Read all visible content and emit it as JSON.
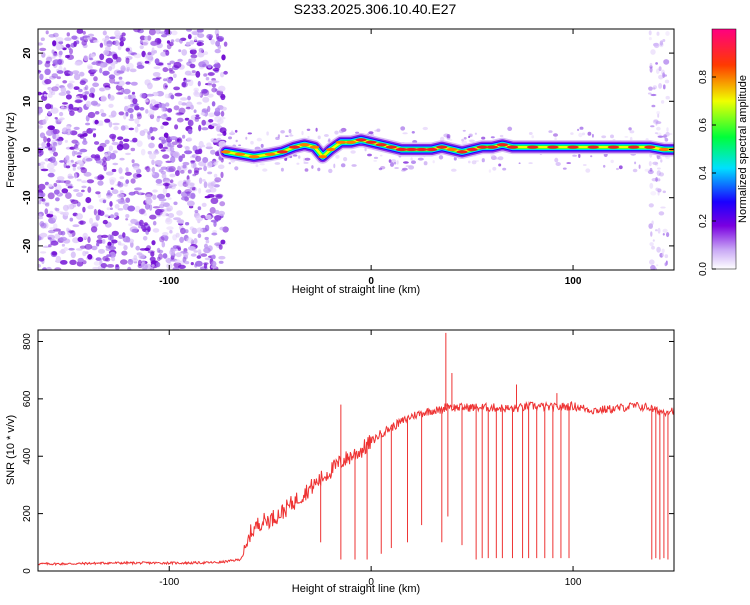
{
  "title": "S233.2025.306.10.40.E27",
  "colors": {
    "snr_line": "#ee3333",
    "axes": "#000000",
    "track_core": "#ee2222",
    "spectrum_noise": "#7a1fd8"
  },
  "chart_data": [
    {
      "type": "heatmap",
      "xlabel": "Height of straight line (km)",
      "ylabel": "Frequency (Hz)",
      "xlim": [
        -165,
        150
      ],
      "ylim": [
        -25,
        25
      ],
      "x_ticks": [
        -100,
        0,
        100
      ],
      "y_ticks": [
        20,
        10,
        0,
        -10,
        -20
      ],
      "colorbar": {
        "label": "Normalized spectral amplitude",
        "range": [
          0,
          1
        ],
        "ticks": [
          "0.0",
          "0.2",
          "0.4",
          "0.6",
          "0.8"
        ],
        "colormap": [
          "#ffffff",
          "#7a00e0",
          "#1a00ff",
          "#00e0ff",
          "#00ff3a",
          "#f0ff00",
          "#ff3a00",
          "#ff0080"
        ]
      },
      "noise_region": {
        "x_from": -165,
        "x_to": -72,
        "freq_from": -25,
        "freq_to": 25
      },
      "edge_noise_region": {
        "x_from": 138,
        "x_to": 147
      },
      "signal_track": {
        "x": [
          -72,
          -65,
          -58,
          -50,
          -44,
          -38,
          -33,
          -28,
          -24,
          -20,
          -15,
          -10,
          -5,
          0,
          5,
          10,
          15,
          20,
          25,
          30,
          35,
          40,
          45,
          50,
          55,
          60,
          65,
          70,
          80,
          90,
          100,
          110,
          120,
          130,
          138,
          145,
          150
        ],
        "freq": [
          -0.5,
          -1.0,
          -1.5,
          -1.0,
          -0.5,
          0.5,
          1.0,
          0.5,
          -1.5,
          0.0,
          1.5,
          1.5,
          2.0,
          1.5,
          1.0,
          0.5,
          0.0,
          0.0,
          0.0,
          0.0,
          0.5,
          0.0,
          -0.5,
          0.0,
          0.5,
          0.5,
          1.0,
          0.5,
          0.5,
          0.5,
          0.5,
          0.5,
          0.5,
          0.5,
          0.5,
          0.0,
          0.0
        ],
        "amplitude": [
          0.7,
          0.8,
          0.85,
          0.85,
          0.9,
          0.9,
          0.85,
          0.7,
          0.6,
          0.7,
          0.85,
          0.8,
          0.9,
          0.9,
          0.9,
          0.9,
          0.95,
          0.95,
          0.9,
          0.9,
          0.9,
          0.85,
          0.9,
          0.9,
          0.9,
          0.95,
          0.95,
          0.95,
          0.95,
          0.95,
          0.95,
          0.95,
          0.95,
          0.95,
          0.9,
          0.8,
          0.8
        ]
      }
    },
    {
      "type": "line",
      "xlabel": "Height of straight line (km)",
      "ylabel": "SNR (10 * v/v)",
      "xlim": [
        -165,
        150
      ],
      "ylim": [
        0,
        840
      ],
      "x_ticks": [
        -100,
        0,
        100
      ],
      "y_ticks": [
        0,
        200,
        400,
        600,
        800
      ],
      "series": [
        {
          "x": [
            -165,
            -150,
            -130,
            -110,
            -90,
            -75,
            -65,
            -62,
            -60,
            -55,
            -50,
            -45,
            -40,
            -35,
            -30,
            -25,
            -20,
            -15,
            -10,
            -5,
            0,
            5,
            10,
            15,
            20,
            25,
            30,
            35,
            38,
            40,
            45,
            50,
            55,
            60,
            70,
            80,
            90,
            100,
            110,
            120,
            130,
            138,
            140,
            145,
            148,
            150
          ],
          "y": [
            25,
            25,
            28,
            28,
            28,
            30,
            40,
            70,
            130,
            170,
            180,
            200,
            230,
            260,
            290,
            320,
            350,
            380,
            400,
            420,
            450,
            480,
            500,
            520,
            540,
            550,
            560,
            560,
            580,
            570,
            570,
            570,
            570,
            570,
            565,
            575,
            570,
            575,
            560,
            565,
            575,
            570,
            560,
            555,
            560,
            560
          ]
        }
      ],
      "spikes_up": [
        {
          "x": -15,
          "y": 580
        },
        {
          "x": 37,
          "y": 830
        },
        {
          "x": 40,
          "y": 690
        },
        {
          "x": 72,
          "y": 650
        },
        {
          "x": 92,
          "y": 620
        }
      ],
      "dropouts": [
        {
          "x": -25,
          "y": 100
        },
        {
          "x": -15,
          "y": 40
        },
        {
          "x": -8,
          "y": 40
        },
        {
          "x": -2,
          "y": 40
        },
        {
          "x": 5,
          "y": 60
        },
        {
          "x": 10,
          "y": 80
        },
        {
          "x": 18,
          "y": 100
        },
        {
          "x": 25,
          "y": 160
        },
        {
          "x": 35,
          "y": 100
        },
        {
          "x": 38,
          "y": 190
        },
        {
          "x": 45,
          "y": 90
        },
        {
          "x": 52,
          "y": 40
        },
        {
          "x": 55,
          "y": 45
        },
        {
          "x": 58,
          "y": 45
        },
        {
          "x": 62,
          "y": 45
        },
        {
          "x": 65,
          "y": 45
        },
        {
          "x": 70,
          "y": 45
        },
        {
          "x": 75,
          "y": 45
        },
        {
          "x": 78,
          "y": 45
        },
        {
          "x": 82,
          "y": 45
        },
        {
          "x": 86,
          "y": 45
        },
        {
          "x": 90,
          "y": 45
        },
        {
          "x": 94,
          "y": 45
        },
        {
          "x": 98,
          "y": 45
        },
        {
          "x": 139,
          "y": 40
        },
        {
          "x": 141,
          "y": 45
        },
        {
          "x": 143,
          "y": 40
        },
        {
          "x": 145,
          "y": 45
        },
        {
          "x": 147,
          "y": 40
        }
      ]
    }
  ]
}
